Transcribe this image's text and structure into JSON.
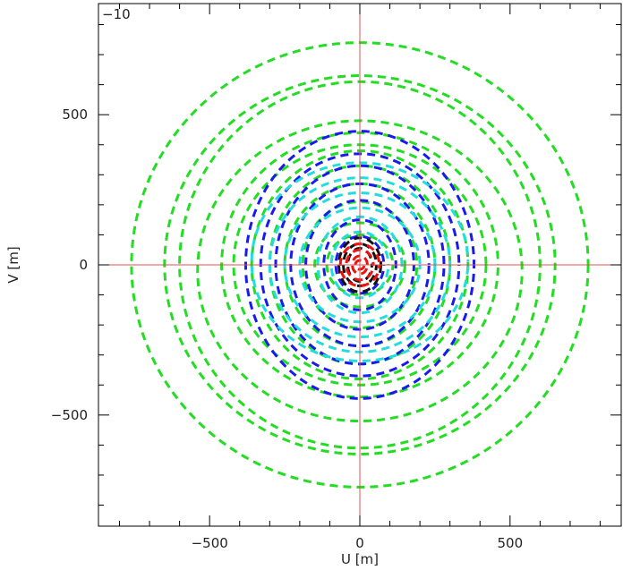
{
  "chart_data": {
    "type": "scatter",
    "title": "",
    "corner_label": "−10",
    "xlabel": "U [m]",
    "ylabel": "V [m]",
    "xlim": [
      -870,
      870
    ],
    "ylim": [
      -870,
      870
    ],
    "x_ticks": [
      {
        "value": -500,
        "label": "−500"
      },
      {
        "value": 0,
        "label": "0"
      },
      {
        "value": 500,
        "label": "500"
      }
    ],
    "y_ticks": [
      {
        "value": -500,
        "label": "−500"
      },
      {
        "value": 0,
        "label": "0"
      },
      {
        "value": 500,
        "label": "500"
      }
    ],
    "zero_lines": {
      "color": "#e05050"
    },
    "grid": false,
    "legend": "none",
    "series": [
      {
        "color": "#22dd22",
        "tracks": [
          {
            "a": 760,
            "b": 740,
            "cy": 0
          },
          {
            "a": 650,
            "b": 630,
            "cy": 0
          },
          {
            "a": 600,
            "b": 610,
            "cy": 0
          },
          {
            "a": 540,
            "b": 500,
            "cy": -20
          },
          {
            "a": 460,
            "b": 440,
            "cy": 0
          },
          {
            "a": 420,
            "b": 400,
            "cy": 0
          },
          {
            "a": 360,
            "b": 380,
            "cy": 0
          },
          {
            "a": 300,
            "b": 330,
            "cy": 0
          },
          {
            "a": 250,
            "b": 270,
            "cy": 0
          },
          {
            "a": 190,
            "b": 210,
            "cy": 0
          },
          {
            "a": 150,
            "b": 140,
            "cy": 0
          },
          {
            "a": 110,
            "b": 100,
            "cy": 0
          }
        ]
      },
      {
        "color": "#1a1aee",
        "tracks": [
          {
            "a": 380,
            "b": 445,
            "cy": 0
          },
          {
            "a": 330,
            "b": 370,
            "cy": 0
          },
          {
            "a": 280,
            "b": 330,
            "cy": 0
          },
          {
            "a": 230,
            "b": 270,
            "cy": 0
          },
          {
            "a": 180,
            "b": 215,
            "cy": 0
          },
          {
            "a": 120,
            "b": 150,
            "cy": 0
          },
          {
            "a": 80,
            "b": 95,
            "cy": 0
          }
        ]
      },
      {
        "color": "#22dddd",
        "tracks": [
          {
            "a": 360,
            "b": 330,
            "cy": 10
          },
          {
            "a": 300,
            "b": 290,
            "cy": 0
          },
          {
            "a": 250,
            "b": 240,
            "cy": 0
          },
          {
            "a": 200,
            "b": 190,
            "cy": 0
          },
          {
            "a": 140,
            "b": 160,
            "cy": 0
          },
          {
            "a": 95,
            "b": 110,
            "cy": 0
          }
        ]
      },
      {
        "color": "#111111",
        "tracks": [
          {
            "a": 70,
            "b": 90,
            "cy": 0
          },
          {
            "a": 55,
            "b": 70,
            "cy": 0
          },
          {
            "a": 40,
            "b": 55,
            "cy": 0
          }
        ]
      },
      {
        "color": "#ee1111",
        "tracks": [
          {
            "a": 65,
            "b": 70,
            "cy": 0
          },
          {
            "a": 45,
            "b": 50,
            "cy": 0
          },
          {
            "a": 25,
            "b": 30,
            "cy": 0
          },
          {
            "a": 15,
            "b": 15,
            "cy": 0
          }
        ]
      }
    ]
  }
}
